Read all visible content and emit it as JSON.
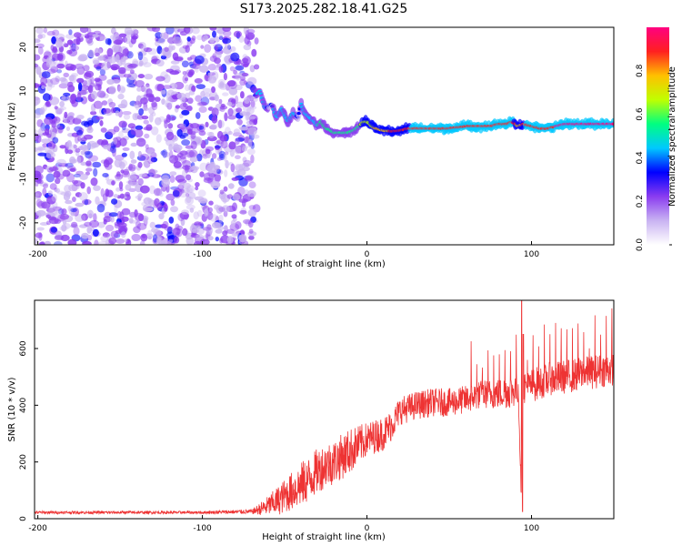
{
  "title": "S173.2025.282.18.41.G25",
  "chart_data": [
    {
      "type": "heatmap",
      "xlabel": "Height of straight line (km)",
      "ylabel": "Frequency (Hz)",
      "xlim": [
        -202,
        150
      ],
      "ylim": [
        -25,
        24.5
      ],
      "xticks": [
        -200,
        -100,
        0,
        100
      ],
      "yticks": [
        -20,
        -10,
        0,
        10,
        20
      ],
      "noise_region": {
        "x_from": -202,
        "x_to": -67,
        "y_from": -25,
        "y_to": 24.5
      },
      "ridge": {
        "x": [
          -68,
          -65,
          -62,
          -58,
          -55,
          -52,
          -48,
          -45,
          -42,
          -40,
          -38,
          -35,
          -32,
          -30,
          -28,
          -25,
          -22,
          -20,
          -18,
          -15,
          -12,
          -10,
          -8,
          -5,
          -2,
          0,
          3,
          5,
          10,
          15,
          20,
          25,
          30,
          40,
          50,
          60,
          70,
          75,
          80,
          85,
          88,
          90,
          92,
          95,
          100,
          105,
          110,
          115,
          120,
          130,
          140,
          150
        ],
        "freq": [
          9,
          10,
          6,
          7,
          4,
          6,
          3,
          5,
          4,
          7,
          5,
          4,
          3,
          2,
          3,
          1.5,
          1,
          0.5,
          0.5,
          0.5,
          0.5,
          0.8,
          1,
          2,
          3,
          3,
          2,
          1.5,
          1,
          0.8,
          1,
          1.5,
          1.5,
          1.5,
          1.5,
          2,
          2,
          2,
          2.5,
          2.5,
          3,
          2.5,
          2,
          2.5,
          2,
          1.5,
          1.5,
          2,
          2.5,
          2.5,
          2.5,
          2.5
        ],
        "amp": [
          0.35,
          0.45,
          0.4,
          0.35,
          0.45,
          0.4,
          0.4,
          0.45,
          0.35,
          0.4,
          0.4,
          0.4,
          0.45,
          0.5,
          0.5,
          0.5,
          0.55,
          0.55,
          0.55,
          0.6,
          0.6,
          0.6,
          0.6,
          0.6,
          0.65,
          0.7,
          0.7,
          0.75,
          0.8,
          0.85,
          0.85,
          0.85,
          0.9,
          0.9,
          0.9,
          0.9,
          0.9,
          0.9,
          0.92,
          0.92,
          0.9,
          0.85,
          0.8,
          0.85,
          0.9,
          0.92,
          0.92,
          0.95,
          0.95,
          0.95,
          0.95,
          0.95
        ]
      },
      "colorbar": {
        "label": "Normalized spectral amplitude",
        "range": [
          0,
          1
        ],
        "ticks": [
          "0.0",
          "0.2",
          "0.4",
          "0.6",
          "0.8"
        ],
        "tick_values": [
          0,
          0.2,
          0.4,
          0.6,
          0.8
        ],
        "colors": [
          "#ffffff",
          "#c9b3f2",
          "#8a3cf0",
          "#0000ff",
          "#00c8ff",
          "#00ff80",
          "#c0ff00",
          "#ffc000",
          "#ff2020",
          "#ff0080"
        ]
      }
    },
    {
      "type": "line",
      "xlabel": "Height of straight line (km)",
      "ylabel": "SNR (10 * v/v)",
      "xlim": [
        -202,
        150
      ],
      "ylim": [
        0,
        770
      ],
      "xticks": [
        -200,
        -100,
        0,
        100
      ],
      "yticks": [
        0,
        200,
        400,
        600
      ],
      "series": [
        {
          "name": "SNR",
          "color": "#ee3333",
          "x": [
            -202,
            -150,
            -100,
            -70,
            -62,
            -55,
            -50,
            -45,
            -40,
            -35,
            -30,
            -25,
            -20,
            -15,
            -10,
            -5,
            0,
            5,
            10,
            15,
            20,
            30,
            40,
            50,
            60,
            70,
            80,
            88,
            92,
            94,
            95,
            97,
            100,
            110,
            120,
            130,
            140,
            150
          ],
          "base": [
            22,
            22,
            22,
            25,
            40,
            60,
            80,
            100,
            120,
            140,
            170,
            190,
            200,
            220,
            240,
            260,
            280,
            290,
            300,
            330,
            380,
            400,
            410,
            410,
            420,
            440,
            440,
            450,
            460,
            30,
            470,
            460,
            470,
            490,
            500,
            510,
            520,
            530
          ],
          "noise": [
            5,
            5,
            5,
            8,
            30,
            50,
            60,
            70,
            80,
            80,
            80,
            80,
            80,
            80,
            80,
            70,
            60,
            60,
            60,
            55,
            50,
            50,
            50,
            50,
            50,
            50,
            55,
            60,
            60,
            20,
            60,
            60,
            60,
            60,
            60,
            60,
            60,
            60
          ],
          "peaks": [
            {
              "x": 94,
              "y": 770
            },
            {
              "x": 95,
              "y": 650
            },
            {
              "x": 94.5,
              "y": 25
            }
          ]
        }
      ]
    }
  ]
}
